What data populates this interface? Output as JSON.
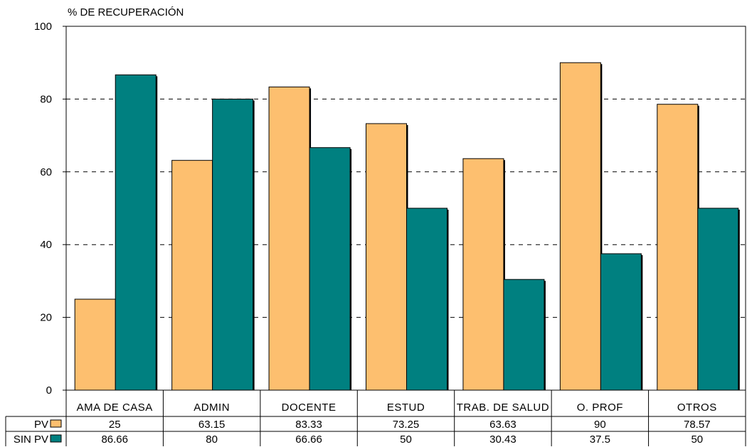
{
  "chart_data": {
    "type": "bar",
    "ylabel": "% DE RECUPERACIÓN",
    "xlabel": "",
    "title": "",
    "ylim": [
      0,
      100
    ],
    "yticks": [
      0,
      20,
      40,
      60,
      80,
      100
    ],
    "grid": "horizontal dashed",
    "categories": [
      "AMA DE CASA",
      "ADMIN",
      "DOCENTE",
      "ESTUD",
      "TRAB. DE SALUD",
      "O. PROF",
      "OTROS"
    ],
    "series": [
      {
        "name": "PV",
        "color": "#FDBF6F",
        "values": [
          25,
          63.15,
          83.33,
          73.25,
          63.63,
          90,
          78.57
        ]
      },
      {
        "name": "SIN PV",
        "color": "#008080",
        "values": [
          86.66,
          80,
          66.66,
          50,
          30.43,
          37.5,
          50
        ]
      }
    ],
    "data_table": {
      "rows": [
        {
          "label": "PV",
          "cells": [
            "25",
            "63.15",
            "83.33",
            "73.25",
            "63.63",
            "90",
            "78.57"
          ]
        },
        {
          "label": "SIN PV",
          "cells": [
            "86.66",
            "80",
            "66.66",
            "50",
            "30.43",
            "37.5",
            "50"
          ]
        }
      ]
    }
  }
}
